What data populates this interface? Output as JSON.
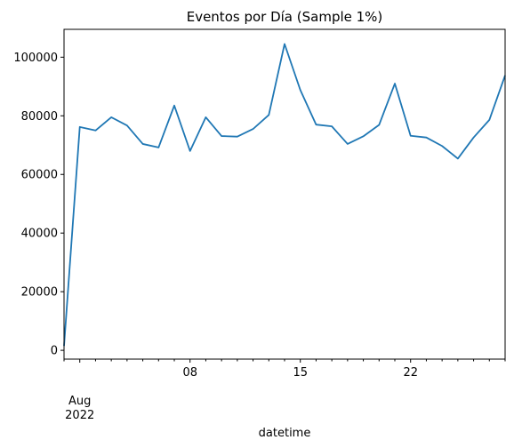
{
  "chart_data": {
    "type": "line",
    "title": "Eventos por Día (Sample 1%)",
    "xlabel": "datetime",
    "ylabel": "",
    "x_start": "2022-07-31",
    "x_end": "2022-08-28",
    "x": [
      "2022-07-31",
      "2022-08-01",
      "2022-08-02",
      "2022-08-03",
      "2022-08-04",
      "2022-08-05",
      "2022-08-06",
      "2022-08-07",
      "2022-08-08",
      "2022-08-09",
      "2022-08-10",
      "2022-08-11",
      "2022-08-12",
      "2022-08-13",
      "2022-08-14",
      "2022-08-15",
      "2022-08-16",
      "2022-08-17",
      "2022-08-18",
      "2022-08-19",
      "2022-08-20",
      "2022-08-21",
      "2022-08-22",
      "2022-08-23",
      "2022-08-24",
      "2022-08-25",
      "2022-08-26",
      "2022-08-27",
      "2022-08-28"
    ],
    "series": [
      {
        "values": [
          1500,
          76200,
          75000,
          79500,
          76700,
          70400,
          69200,
          83500,
          68000,
          79500,
          73100,
          72900,
          75500,
          80300,
          104500,
          88800,
          77000,
          76400,
          70400,
          73000,
          76900,
          91000,
          73200,
          72600,
          69700,
          65400,
          72600,
          78600,
          93800
        ],
        "color": "#1f77b4"
      }
    ],
    "ylim": [
      -3000,
      109500
    ],
    "yticks": [
      {
        "value": 0,
        "label": "0"
      },
      {
        "value": 20000,
        "label": "20000"
      },
      {
        "value": 40000,
        "label": "40000"
      },
      {
        "value": 60000,
        "label": "60000"
      },
      {
        "value": 80000,
        "label": "80000"
      },
      {
        "value": 100000,
        "label": "100000"
      }
    ],
    "xticks_major": [
      {
        "date": "2022-08-01",
        "label": "Aug",
        "sublabel": "2022"
      },
      {
        "date": "2022-08-08",
        "label": "08"
      },
      {
        "date": "2022-08-15",
        "label": "15"
      },
      {
        "date": "2022-08-22",
        "label": "22"
      }
    ],
    "grid": false,
    "legend": "none"
  }
}
